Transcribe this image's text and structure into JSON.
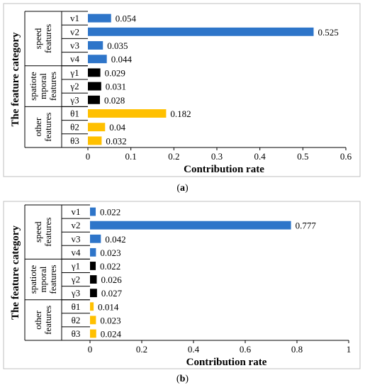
{
  "captions": {
    "a_letter": "a",
    "b_letter": "b"
  },
  "chart_data": [
    {
      "type": "bar",
      "orientation": "horizontal",
      "ylabel": "The feature category",
      "xlabel": "Contribution rate",
      "xlim": [
        0,
        0.6
      ],
      "xticks": [
        "0",
        "0.1",
        "0.2",
        "0.3",
        "0.4",
        "0.5",
        "0.6"
      ],
      "xtick_values": [
        0,
        0.1,
        0.2,
        0.3,
        0.4,
        0.5,
        0.6
      ],
      "groups": [
        {
          "name": "speed features",
          "lines": [
            "speed",
            "features"
          ],
          "color": "#2E75C9",
          "items": [
            "v1",
            "v2",
            "v3",
            "v4"
          ]
        },
        {
          "name": "spatiotemporal features",
          "lines": [
            "spatiote",
            "mporal",
            "features"
          ],
          "color": "#000000",
          "items": [
            "γ1",
            "γ2",
            "γ3"
          ]
        },
        {
          "name": "other features",
          "lines": [
            "other",
            "features"
          ],
          "color": "#FFC000",
          "items": [
            "θ1",
            "θ2",
            "θ3"
          ]
        }
      ],
      "categories": [
        "v1",
        "v2",
        "v3",
        "v4",
        "γ1",
        "γ2",
        "γ3",
        "θ1",
        "θ2",
        "θ3"
      ],
      "values": [
        0.054,
        0.525,
        0.035,
        0.044,
        0.029,
        0.031,
        0.028,
        0.182,
        0.04,
        0.032
      ],
      "value_labels": [
        "0.054",
        "0.525",
        "0.035",
        "0.044",
        "0.029",
        "0.031",
        "0.028",
        "0.182",
        "0.04",
        "0.032"
      ]
    },
    {
      "type": "bar",
      "orientation": "horizontal",
      "ylabel": "The feature category",
      "xlabel": "Contribution rate",
      "xlim": [
        0,
        1
      ],
      "xticks": [
        "0",
        "0.2",
        "0.4",
        "0.6",
        "0.8",
        "1"
      ],
      "xtick_values": [
        0,
        0.2,
        0.4,
        0.6,
        0.8,
        1
      ],
      "groups": [
        {
          "name": "speed features",
          "lines": [
            "speed",
            "features"
          ],
          "color": "#2E75C9",
          "items": [
            "v1",
            "v2",
            "v3",
            "v4"
          ]
        },
        {
          "name": "spatiotemporal features",
          "lines": [
            "spatiote",
            "mporal",
            "features"
          ],
          "color": "#000000",
          "items": [
            "γ1",
            "γ2",
            "γ3"
          ]
        },
        {
          "name": "other features",
          "lines": [
            "other",
            "features"
          ],
          "color": "#FFC000",
          "items": [
            "θ1",
            "θ2",
            "θ3"
          ]
        }
      ],
      "categories": [
        "v1",
        "v2",
        "v3",
        "v4",
        "γ1",
        "γ2",
        "γ3",
        "θ1",
        "θ2",
        "θ3"
      ],
      "values": [
        0.022,
        0.777,
        0.042,
        0.023,
        0.022,
        0.026,
        0.027,
        0.014,
        0.023,
        0.024
      ],
      "value_labels": [
        "0.022",
        "0.777",
        "0.042",
        "0.023",
        "0.022",
        "0.026",
        "0.027",
        "0.014",
        "0.023",
        "0.024"
      ]
    }
  ]
}
